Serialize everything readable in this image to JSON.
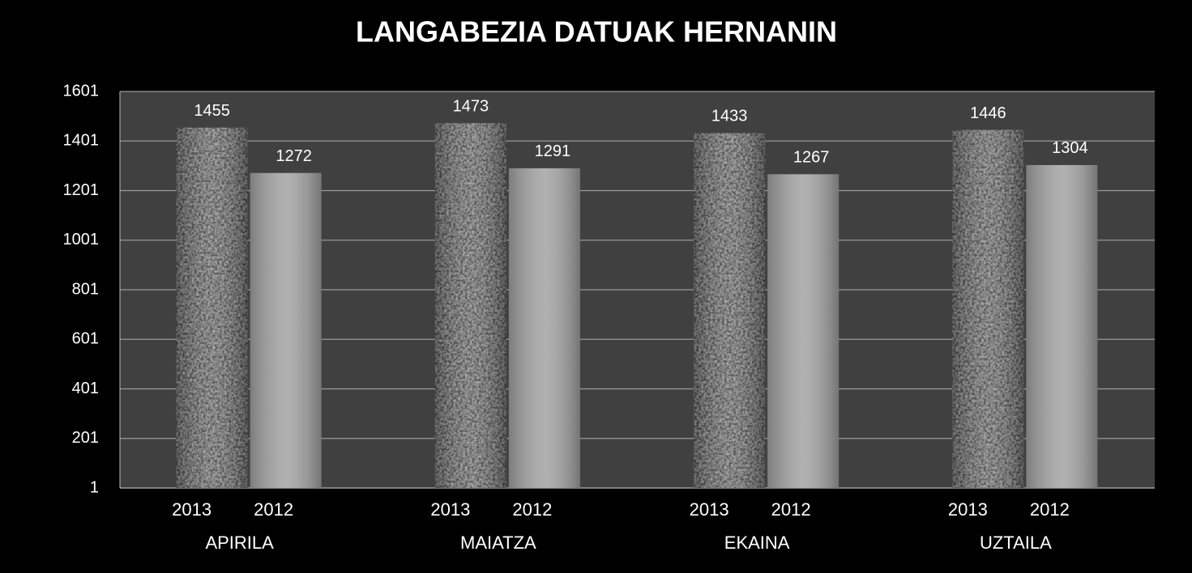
{
  "chart_data": {
    "type": "bar",
    "title": "LANGABEZIA DATUAK HERNANIN",
    "categories": [
      "APIRILA",
      "MAIATZA",
      "EKAINA",
      "UZTAILA"
    ],
    "series": [
      {
        "name": "2013",
        "color": "#b4b4b4",
        "values": [
          1455,
          1473,
          1433,
          1446
        ]
      },
      {
        "name": "2012",
        "color": "#a6a6a6",
        "values": [
          1272,
          1291,
          1267,
          1304
        ]
      }
    ],
    "ylim": [
      1,
      1601
    ],
    "yticks": [
      1,
      201,
      401,
      601,
      801,
      1001,
      1201,
      1401,
      1601
    ],
    "grid": true
  }
}
